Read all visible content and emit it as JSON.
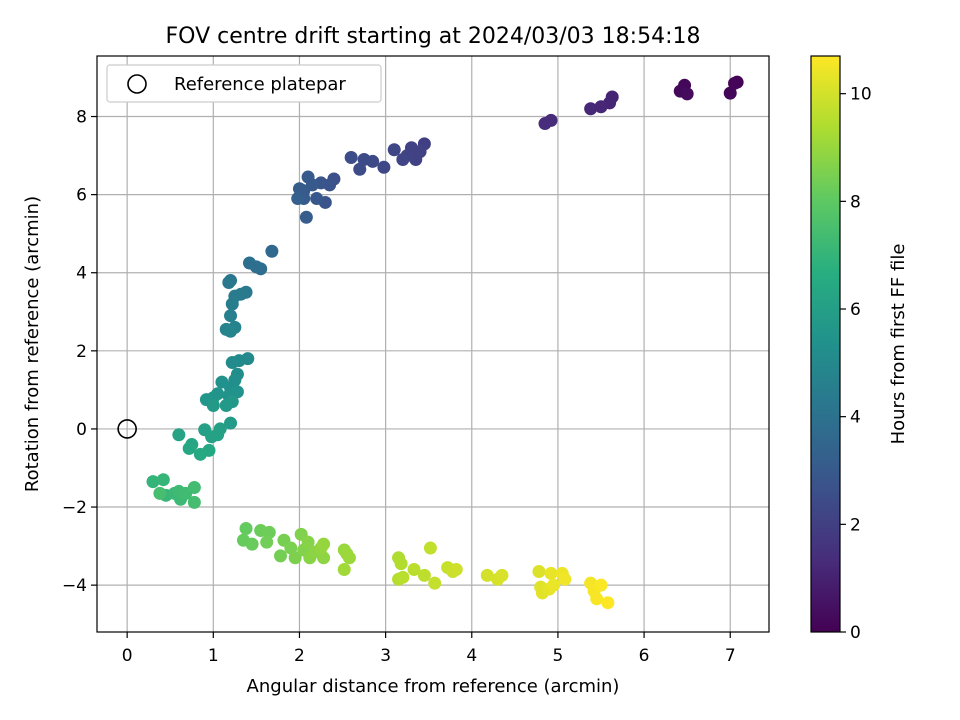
{
  "chart_data": {
    "type": "scatter",
    "title": "FOV centre drift starting at 2024/03/03 18:54:18",
    "xlabel": "Angular distance from reference (arcmin)",
    "ylabel": "Rotation from reference (arcmin)",
    "xlim": [
      -0.35,
      7.45
    ],
    "ylim": [
      -5.2,
      9.55
    ],
    "xticks": [
      0,
      1,
      2,
      3,
      4,
      5,
      6,
      7
    ],
    "yticks": [
      -4,
      -2,
      0,
      2,
      4,
      6,
      8
    ],
    "ytick_labels": [
      "−4",
      "−2",
      "0",
      "2",
      "4",
      "6",
      "8"
    ],
    "grid": true,
    "legend": {
      "position": "top-left",
      "label": "Reference platepar"
    },
    "reference_point": {
      "x": 0,
      "y": 0
    },
    "colorbar": {
      "label": "Hours from first FF file",
      "colormap": "viridis",
      "range": [
        0,
        10.7
      ],
      "ticks": [
        0,
        2,
        4,
        6,
        8,
        10
      ]
    },
    "points": [
      {
        "x": 7.08,
        "y": 8.88,
        "c": 0.05
      },
      {
        "x": 7.05,
        "y": 8.85,
        "c": 0.1
      },
      {
        "x": 7.0,
        "y": 8.6,
        "c": 0.15
      },
      {
        "x": 6.47,
        "y": 8.8,
        "c": 0.2
      },
      {
        "x": 6.42,
        "y": 8.65,
        "c": 0.25
      },
      {
        "x": 6.5,
        "y": 8.58,
        "c": 0.3
      },
      {
        "x": 5.63,
        "y": 8.5,
        "c": 1.05
      },
      {
        "x": 5.6,
        "y": 8.35,
        "c": 1.1
      },
      {
        "x": 5.5,
        "y": 8.25,
        "c": 1.15
      },
      {
        "x": 5.38,
        "y": 8.2,
        "c": 1.2
      },
      {
        "x": 4.92,
        "y": 7.9,
        "c": 1.3
      },
      {
        "x": 4.85,
        "y": 7.82,
        "c": 1.35
      },
      {
        "x": 3.45,
        "y": 7.3,
        "c": 2.0
      },
      {
        "x": 3.4,
        "y": 7.1,
        "c": 2.05
      },
      {
        "x": 3.35,
        "y": 6.9,
        "c": 2.1
      },
      {
        "x": 3.3,
        "y": 7.2,
        "c": 2.1
      },
      {
        "x": 3.25,
        "y": 7.0,
        "c": 2.15
      },
      {
        "x": 3.2,
        "y": 6.9,
        "c": 2.2
      },
      {
        "x": 3.1,
        "y": 7.15,
        "c": 2.25
      },
      {
        "x": 2.98,
        "y": 6.7,
        "c": 2.3
      },
      {
        "x": 2.85,
        "y": 6.85,
        "c": 2.35
      },
      {
        "x": 2.75,
        "y": 6.9,
        "c": 2.4
      },
      {
        "x": 2.7,
        "y": 6.65,
        "c": 2.45
      },
      {
        "x": 2.6,
        "y": 6.95,
        "c": 2.5
      },
      {
        "x": 2.4,
        "y": 6.4,
        "c": 2.6
      },
      {
        "x": 2.35,
        "y": 6.25,
        "c": 2.7
      },
      {
        "x": 2.3,
        "y": 5.8,
        "c": 2.75
      },
      {
        "x": 2.25,
        "y": 6.3,
        "c": 2.8
      },
      {
        "x": 2.2,
        "y": 5.9,
        "c": 2.9
      },
      {
        "x": 2.15,
        "y": 6.25,
        "c": 2.95
      },
      {
        "x": 2.1,
        "y": 6.45,
        "c": 3.0
      },
      {
        "x": 2.05,
        "y": 6.1,
        "c": 3.0
      },
      {
        "x": 2.05,
        "y": 5.9,
        "c": 3.05
      },
      {
        "x": 2.0,
        "y": 6.15,
        "c": 3.1
      },
      {
        "x": 2.08,
        "y": 5.42,
        "c": 3.15
      },
      {
        "x": 1.98,
        "y": 5.9,
        "c": 3.2
      },
      {
        "x": 1.68,
        "y": 4.55,
        "c": 3.6
      },
      {
        "x": 1.55,
        "y": 4.1,
        "c": 3.8
      },
      {
        "x": 1.5,
        "y": 4.15,
        "c": 3.85
      },
      {
        "x": 1.42,
        "y": 4.25,
        "c": 3.9
      },
      {
        "x": 1.2,
        "y": 3.8,
        "c": 4.2
      },
      {
        "x": 1.18,
        "y": 3.75,
        "c": 4.25
      },
      {
        "x": 1.38,
        "y": 3.5,
        "c": 4.3
      },
      {
        "x": 1.32,
        "y": 3.45,
        "c": 4.35
      },
      {
        "x": 1.25,
        "y": 3.4,
        "c": 4.4
      },
      {
        "x": 1.22,
        "y": 3.2,
        "c": 4.5
      },
      {
        "x": 1.2,
        "y": 2.9,
        "c": 4.6
      },
      {
        "x": 1.25,
        "y": 2.6,
        "c": 4.7
      },
      {
        "x": 1.15,
        "y": 2.55,
        "c": 4.75
      },
      {
        "x": 1.2,
        "y": 2.5,
        "c": 4.8
      },
      {
        "x": 1.4,
        "y": 1.8,
        "c": 5.0
      },
      {
        "x": 1.3,
        "y": 1.75,
        "c": 5.05
      },
      {
        "x": 1.22,
        "y": 1.7,
        "c": 5.1
      },
      {
        "x": 1.28,
        "y": 1.4,
        "c": 5.2
      },
      {
        "x": 1.25,
        "y": 1.25,
        "c": 5.25
      },
      {
        "x": 1.2,
        "y": 1.05,
        "c": 5.3
      },
      {
        "x": 1.1,
        "y": 1.2,
        "c": 5.35
      },
      {
        "x": 1.28,
        "y": 0.95,
        "c": 5.4
      },
      {
        "x": 1.18,
        "y": 0.85,
        "c": 5.45
      },
      {
        "x": 1.05,
        "y": 0.9,
        "c": 5.5
      },
      {
        "x": 1.0,
        "y": 0.8,
        "c": 5.55
      },
      {
        "x": 0.92,
        "y": 0.75,
        "c": 5.6
      },
      {
        "x": 1.22,
        "y": 0.7,
        "c": 5.65
      },
      {
        "x": 1.15,
        "y": 0.6,
        "c": 5.7
      },
      {
        "x": 1.0,
        "y": 0.6,
        "c": 5.75
      },
      {
        "x": 1.2,
        "y": 0.15,
        "c": 5.8
      },
      {
        "x": 1.08,
        "y": 0.0,
        "c": 6.0
      },
      {
        "x": 0.9,
        "y": -0.02,
        "c": 6.05
      },
      {
        "x": 1.05,
        "y": -0.15,
        "c": 6.1
      },
      {
        "x": 0.98,
        "y": -0.2,
        "c": 6.15
      },
      {
        "x": 0.6,
        "y": -0.15,
        "c": 6.2
      },
      {
        "x": 0.75,
        "y": -0.4,
        "c": 6.25
      },
      {
        "x": 0.72,
        "y": -0.5,
        "c": 6.3
      },
      {
        "x": 0.95,
        "y": -0.55,
        "c": 6.35
      },
      {
        "x": 0.85,
        "y": -0.65,
        "c": 6.4
      },
      {
        "x": 0.3,
        "y": -1.35,
        "c": 7.0
      },
      {
        "x": 0.42,
        "y": -1.3,
        "c": 7.05
      },
      {
        "x": 0.45,
        "y": -1.7,
        "c": 7.1
      },
      {
        "x": 0.55,
        "y": -1.65,
        "c": 7.15
      },
      {
        "x": 0.62,
        "y": -1.8,
        "c": 7.2
      },
      {
        "x": 0.6,
        "y": -1.6,
        "c": 7.25
      },
      {
        "x": 0.68,
        "y": -1.65,
        "c": 7.3
      },
      {
        "x": 0.78,
        "y": -1.5,
        "c": 7.35
      },
      {
        "x": 0.78,
        "y": -1.88,
        "c": 7.4
      },
      {
        "x": 0.38,
        "y": -1.65,
        "c": 7.45
      },
      {
        "x": 1.38,
        "y": -2.55,
        "c": 8.1
      },
      {
        "x": 1.35,
        "y": -2.85,
        "c": 8.15
      },
      {
        "x": 1.45,
        "y": -2.95,
        "c": 8.2
      },
      {
        "x": 1.55,
        "y": -2.6,
        "c": 8.25
      },
      {
        "x": 1.65,
        "y": -2.65,
        "c": 8.3
      },
      {
        "x": 1.62,
        "y": -2.9,
        "c": 8.35
      },
      {
        "x": 1.78,
        "y": -3.25,
        "c": 8.4
      },
      {
        "x": 1.82,
        "y": -2.85,
        "c": 8.45
      },
      {
        "x": 1.9,
        "y": -3.05,
        "c": 8.5
      },
      {
        "x": 1.95,
        "y": -3.3,
        "c": 8.55
      },
      {
        "x": 2.02,
        "y": -2.7,
        "c": 8.6
      },
      {
        "x": 2.05,
        "y": -3.1,
        "c": 8.65
      },
      {
        "x": 2.1,
        "y": -2.9,
        "c": 8.7
      },
      {
        "x": 2.12,
        "y": -3.3,
        "c": 8.75
      },
      {
        "x": 2.18,
        "y": -3.15,
        "c": 8.8
      },
      {
        "x": 2.28,
        "y": -3.3,
        "c": 8.85
      },
      {
        "x": 2.25,
        "y": -3.05,
        "c": 8.9
      },
      {
        "x": 2.28,
        "y": -2.95,
        "c": 8.95
      },
      {
        "x": 2.52,
        "y": -3.1,
        "c": 9.0
      },
      {
        "x": 2.55,
        "y": -3.2,
        "c": 9.05
      },
      {
        "x": 2.58,
        "y": -3.3,
        "c": 9.1
      },
      {
        "x": 2.52,
        "y": -3.6,
        "c": 9.15
      },
      {
        "x": 3.15,
        "y": -3.3,
        "c": 9.4
      },
      {
        "x": 3.18,
        "y": -3.45,
        "c": 9.45
      },
      {
        "x": 3.15,
        "y": -3.85,
        "c": 9.5
      },
      {
        "x": 3.2,
        "y": -3.8,
        "c": 9.55
      },
      {
        "x": 3.33,
        "y": -3.6,
        "c": 9.6
      },
      {
        "x": 3.45,
        "y": -3.75,
        "c": 9.65
      },
      {
        "x": 3.52,
        "y": -3.05,
        "c": 9.7
      },
      {
        "x": 3.57,
        "y": -3.95,
        "c": 9.75
      },
      {
        "x": 3.72,
        "y": -3.55,
        "c": 9.8
      },
      {
        "x": 3.78,
        "y": -3.65,
        "c": 9.85
      },
      {
        "x": 3.82,
        "y": -3.6,
        "c": 9.9
      },
      {
        "x": 4.18,
        "y": -3.75,
        "c": 10.0
      },
      {
        "x": 4.3,
        "y": -3.85,
        "c": 10.05
      },
      {
        "x": 4.35,
        "y": -3.75,
        "c": 10.1
      },
      {
        "x": 4.78,
        "y": -3.65,
        "c": 10.15
      },
      {
        "x": 4.8,
        "y": -4.05,
        "c": 10.2
      },
      {
        "x": 4.82,
        "y": -4.2,
        "c": 10.25
      },
      {
        "x": 4.9,
        "y": -4.1,
        "c": 10.3
      },
      {
        "x": 4.92,
        "y": -3.7,
        "c": 10.35
      },
      {
        "x": 4.95,
        "y": -4.0,
        "c": 10.4
      },
      {
        "x": 5.05,
        "y": -3.7,
        "c": 10.45
      },
      {
        "x": 5.08,
        "y": -3.85,
        "c": 10.5
      },
      {
        "x": 5.38,
        "y": -3.95,
        "c": 10.55
      },
      {
        "x": 5.42,
        "y": -4.15,
        "c": 10.6
      },
      {
        "x": 5.45,
        "y": -4.35,
        "c": 10.62
      },
      {
        "x": 5.5,
        "y": -4.0,
        "c": 10.65
      },
      {
        "x": 5.58,
        "y": -4.45,
        "c": 10.7
      }
    ]
  }
}
